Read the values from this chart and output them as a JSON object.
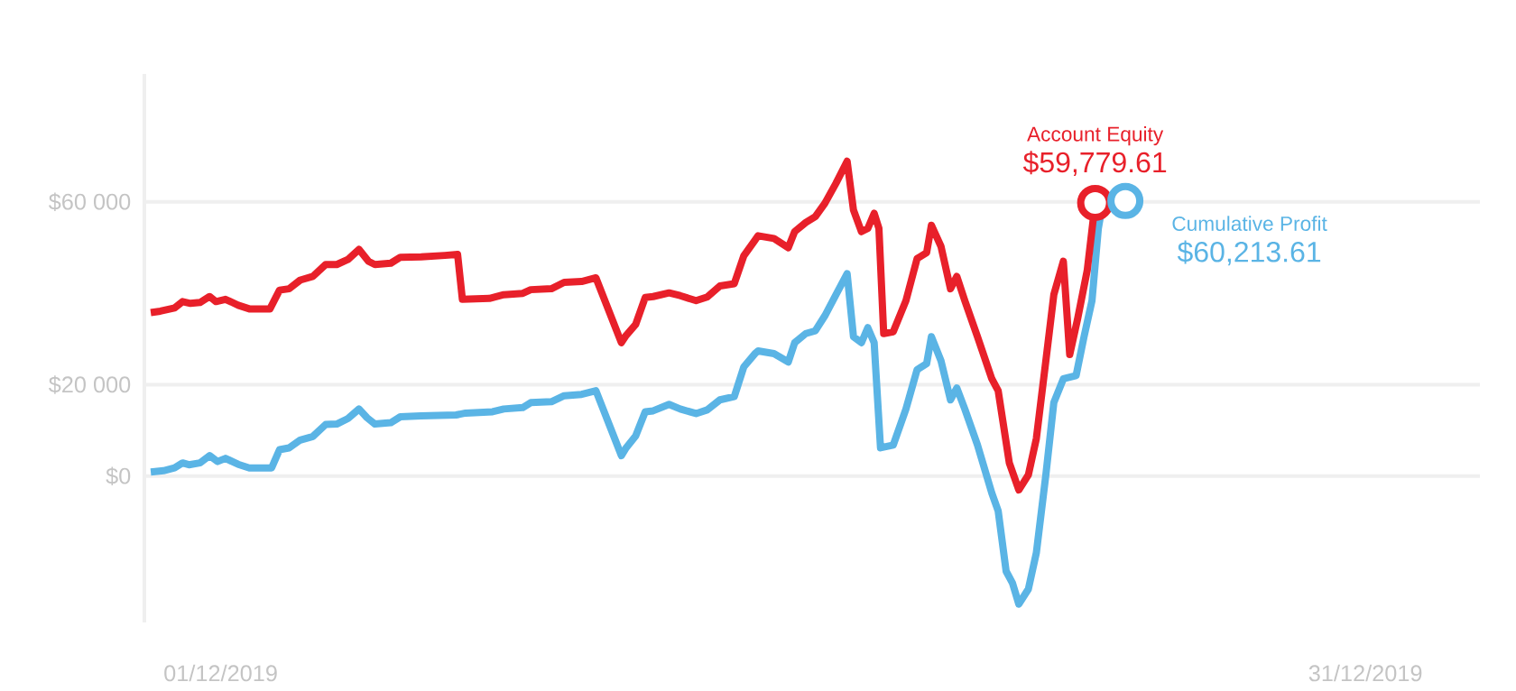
{
  "chart_data": {
    "type": "line",
    "xlim": [
      "2019-11-29T00:00",
      "2020-01-03T00:00"
    ],
    "ylim": [
      -32000,
      88000
    ],
    "xticks": [
      {
        "value": "2019-12-01",
        "label": "01/12/2019"
      },
      {
        "value": "2019-12-31",
        "label": "31/12/2019"
      }
    ],
    "yticks": [
      {
        "value": 0,
        "label": "$0"
      },
      {
        "value": 20000,
        "label": "$20 000"
      },
      {
        "value": 60000,
        "label": "$60 000"
      }
    ],
    "grid": "y",
    "series": [
      {
        "name": "Account Equity",
        "color": "#e8202a",
        "x": [
          "2019-11-29T04:00",
          "2019-11-29T10:00",
          "2019-11-29T19:00",
          "2019-11-30T00:00",
          "2019-11-30T05:00",
          "2019-11-30T11:00",
          "2019-11-30T17:00",
          "2019-11-30T21:00",
          "2019-12-01T03:00",
          "2019-12-01T11:00",
          "2019-12-01T18:00",
          "2019-12-02T07:00",
          "2019-12-02T13:00",
          "2019-12-02T19:00",
          "2019-12-03T02:00",
          "2019-12-03T10:00",
          "2019-12-03T18:00",
          "2019-12-04T01:00",
          "2019-12-04T08:00",
          "2019-12-04T15:00",
          "2019-12-04T21:00",
          "2019-12-05T01:00",
          "2019-12-05T11:00",
          "2019-12-05T17:00",
          "2019-12-06T06:00",
          "2019-12-06T21:00",
          "2019-12-07T05:00",
          "2019-12-07T08:00",
          "2019-12-08T01:00",
          "2019-12-08T10:00",
          "2019-12-08T22:00",
          "2019-12-09T03:00",
          "2019-12-09T16:00",
          "2019-12-10T00:00",
          "2019-12-10T11:00",
          "2019-12-10T20:00",
          "2019-12-11T12:00",
          "2019-12-11T15:00",
          "2019-12-11T21:00",
          "2019-12-12T03:00",
          "2019-12-12T08:00",
          "2019-12-12T18:00",
          "2019-12-13T01:00",
          "2019-12-13T11:00",
          "2019-12-13T18:00",
          "2019-12-14T02:00",
          "2019-12-14T11:00",
          "2019-12-14T17:00",
          "2019-12-15T00:00",
          "2019-12-15T02:00",
          "2019-12-15T12:00",
          "2019-12-15T21:00",
          "2019-12-16T01:00",
          "2019-12-16T08:00",
          "2019-12-16T14:00",
          "2019-12-16T20:00",
          "2019-12-17T03:00",
          "2019-12-17T10:00",
          "2019-12-17T14:00",
          "2019-12-17T19:00",
          "2019-12-17T23:00",
          "2019-12-18T03:00",
          "2019-12-18T06:00",
          "2019-12-18T09:00",
          "2019-12-18T15:00",
          "2019-12-18T23:00",
          "2019-12-19T06:00",
          "2019-12-19T12:00",
          "2019-12-19T15:00",
          "2019-12-19T21:00",
          "2019-12-20T03:00",
          "2019-12-20T07:00",
          "2019-12-20T12:00",
          "2019-12-20T20:00",
          "2019-12-21T05:00",
          "2019-12-21T09:00",
          "2019-12-21T16:00",
          "2019-12-21T22:00",
          "2019-12-22T04:00",
          "2019-12-22T09:00",
          "2019-12-22T15:00",
          "2019-12-22T20:00",
          "2019-12-23T02:00",
          "2019-12-23T06:00",
          "2019-12-23T11:00",
          "2019-12-23T17:00",
          "2019-12-23T22:00"
        ],
        "values": [
          35800,
          36100,
          36800,
          38200,
          37800,
          38000,
          39300,
          38200,
          38700,
          37400,
          36600,
          36600,
          40700,
          41000,
          42900,
          43700,
          46300,
          46300,
          47400,
          49600,
          47000,
          46300,
          46600,
          47900,
          48000,
          48300,
          48500,
          38700,
          38900,
          39700,
          40000,
          40800,
          41000,
          42400,
          42600,
          43400,
          29200,
          30800,
          33200,
          39100,
          39300,
          40100,
          39500,
          38400,
          39200,
          41600,
          42100,
          48200,
          51600,
          52600,
          52000,
          50000,
          53500,
          55500,
          56800,
          59700,
          64100,
          68900,
          58200,
          53500,
          54200,
          57500,
          54200,
          31200,
          31600,
          38400,
          47600,
          48900,
          54900,
          50300,
          41000,
          43700,
          38400,
          30500,
          21300,
          18700,
          2900,
          -3000,
          300,
          8200,
          25300,
          39700,
          47000,
          26600,
          34500,
          45000,
          59779.61
        ]
      },
      {
        "name": "Cumulative Profit",
        "color": "#5ab4e5",
        "x": [
          "2019-11-29T04:00",
          "2019-11-29T12:00",
          "2019-11-29T19:00",
          "2019-11-30T00:00",
          "2019-11-30T04:00",
          "2019-11-30T11:00",
          "2019-11-30T17:00",
          "2019-11-30T22:00",
          "2019-12-01T03:00",
          "2019-12-01T11:00",
          "2019-12-01T18:00",
          "2019-12-02T08:00",
          "2019-12-02T13:00",
          "2019-12-02T19:00",
          "2019-12-03T02:00",
          "2019-12-03T10:00",
          "2019-12-03T18:00",
          "2019-12-04T01:00",
          "2019-12-04T08:00",
          "2019-12-04T15:00",
          "2019-12-04T20:00",
          "2019-12-05T01:00",
          "2019-12-05T11:00",
          "2019-12-05T17:00",
          "2019-12-06T06:00",
          "2019-12-07T04:00",
          "2019-12-07T10:00",
          "2019-12-08T03:00",
          "2019-12-08T10:00",
          "2019-12-08T22:00",
          "2019-12-09T03:00",
          "2019-12-09T16:00",
          "2019-12-10T00:00",
          "2019-12-10T11:00",
          "2019-12-10T20:00",
          "2019-12-11T12:00",
          "2019-12-11T15:00",
          "2019-12-11T21:00",
          "2019-12-12T03:00",
          "2019-12-12T08:00",
          "2019-12-12T18:00",
          "2019-12-13T01:00",
          "2019-12-13T11:00",
          "2019-12-13T18:00",
          "2019-12-14T02:00",
          "2019-12-14T11:00",
          "2019-12-14T17:00",
          "2019-12-15T00:00",
          "2019-12-15T02:00",
          "2019-12-15T12:00",
          "2019-12-15T21:00",
          "2019-12-16T01:00",
          "2019-12-16T08:00",
          "2019-12-16T14:00",
          "2019-12-16T20:00",
          "2019-12-17T03:00",
          "2019-12-17T10:00",
          "2019-12-17T14:00",
          "2019-12-17T19:00",
          "2019-12-17T23:00",
          "2019-12-18T03:00",
          "2019-12-18T07:00",
          "2019-12-18T15:00",
          "2019-12-18T23:00",
          "2019-12-19T06:00",
          "2019-12-19T12:00",
          "2019-12-19T15:00",
          "2019-12-19T21:00",
          "2019-12-20T03:00",
          "2019-12-20T07:00",
          "2019-12-20T12:00",
          "2019-12-20T20:00",
          "2019-12-21T05:00",
          "2019-12-21T09:00",
          "2019-12-21T14:00",
          "2019-12-21T18:00",
          "2019-12-21T22:00",
          "2019-12-22T04:00",
          "2019-12-22T09:00",
          "2019-12-22T15:00",
          "2019-12-22T20:00",
          "2019-12-23T02:00",
          "2019-12-23T10:00",
          "2019-12-23T15:00",
          "2019-12-23T20:00",
          "2019-12-24T00:00",
          "2019-12-24T03:00"
        ],
        "values": [
          900,
          1200,
          1800,
          2900,
          2500,
          2900,
          4500,
          3200,
          3900,
          2600,
          1800,
          1800,
          5800,
          6200,
          7900,
          8700,
          11300,
          11400,
          12600,
          14700,
          12800,
          11400,
          11700,
          13000,
          13200,
          13400,
          13800,
          14100,
          14700,
          15000,
          16100,
          16300,
          17600,
          17900,
          18700,
          4500,
          6200,
          8800,
          14100,
          14300,
          15700,
          14700,
          13700,
          14500,
          16700,
          17400,
          23900,
          26800,
          27400,
          26800,
          25000,
          29200,
          31200,
          31800,
          35100,
          39700,
          44300,
          30500,
          29200,
          32500,
          29200,
          6200,
          6800,
          14700,
          23300,
          24600,
          30500,
          25300,
          16700,
          19300,
          14700,
          6800,
          -3700,
          -7600,
          -20800,
          -23400,
          -28000,
          -24700,
          -16800,
          300,
          16100,
          21300,
          22000,
          30500,
          38400,
          54200,
          60213.61
        ]
      }
    ],
    "annotations": [
      {
        "text": "$59,779.61",
        "x": "2019-12-23T22:00",
        "y": 59779.61
      },
      {
        "text": "$60,213.61",
        "x": "2019-12-24T17:00",
        "y": 60213.61
      }
    ]
  }
}
